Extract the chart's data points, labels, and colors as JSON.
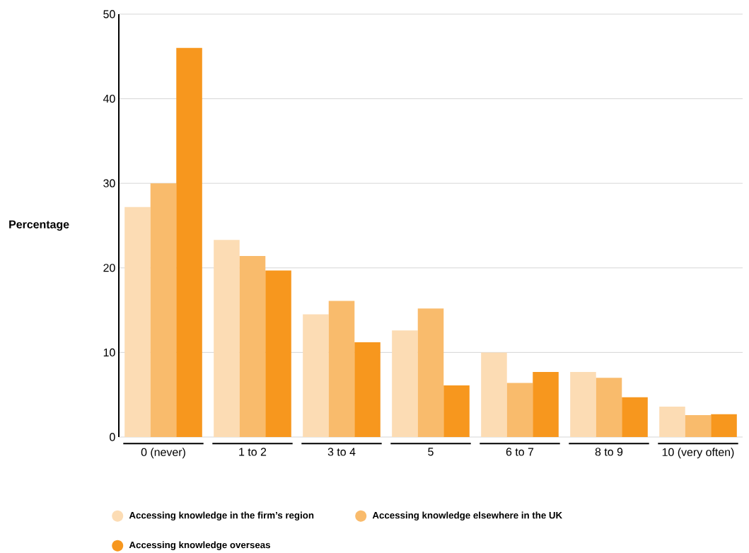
{
  "chart_data": {
    "type": "bar",
    "ylabel": "Percentage",
    "categories": [
      "0 (never)",
      "1 to 2",
      "3 to 4",
      "5",
      "6 to 7",
      "8 to 9",
      "10 (very often)"
    ],
    "series": [
      {
        "name": "Accessing knowledge in the firm’s region",
        "color": "#fcdcb4",
        "values": [
          27.2,
          23.3,
          14.5,
          12.6,
          10.0,
          7.7,
          3.6
        ]
      },
      {
        "name": "Accessing knowledge elsewhere in the UK",
        "color": "#f9bb6c",
        "values": [
          30.0,
          21.4,
          16.1,
          15.2,
          6.4,
          7.0,
          2.6
        ]
      },
      {
        "name": "Accessing knowledge overseas",
        "color": "#f7971e",
        "values": [
          46.0,
          19.7,
          11.2,
          6.1,
          7.7,
          4.7,
          2.7
        ]
      }
    ],
    "ylim": [
      0,
      50
    ],
    "yticks": [
      0,
      10,
      20,
      30,
      40,
      50
    ],
    "grid": "y",
    "legend": "bottom"
  }
}
